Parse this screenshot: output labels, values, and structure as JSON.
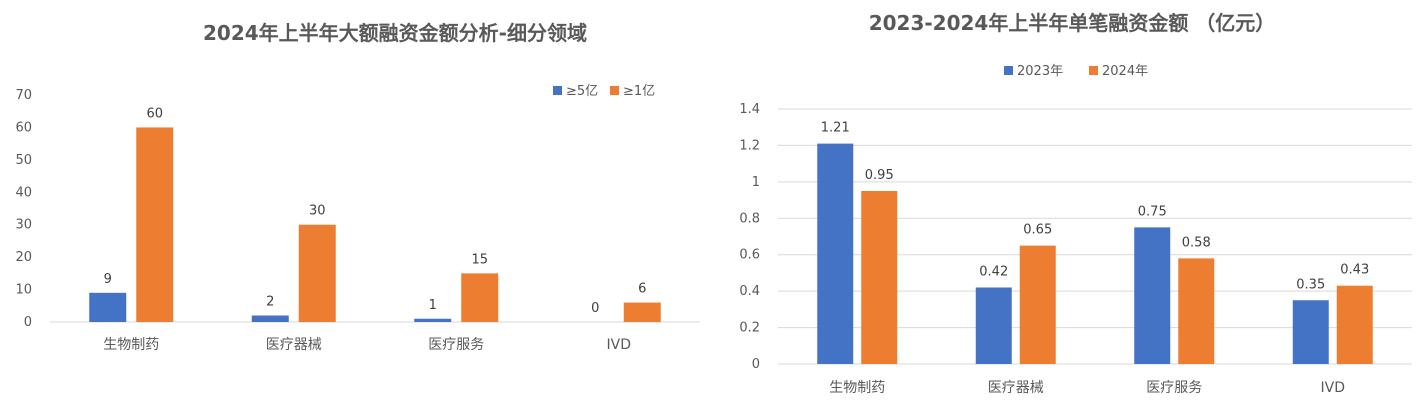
{
  "chart_data": [
    {
      "type": "bar",
      "title": "2024年上半年大额融资金额分析-细分领域",
      "categories": [
        "生物制药",
        "医疗器械",
        "医疗服务",
        "IVD"
      ],
      "series": [
        {
          "name": "≥5亿",
          "values": [
            9,
            2,
            1,
            0
          ],
          "color": "#4472C4"
        },
        {
          "name": "≥1亿",
          "values": [
            60,
            30,
            15,
            6
          ],
          "color": "#ED7D31"
        }
      ],
      "y_ticks": [
        "0",
        "10",
        "20",
        "30",
        "40",
        "50",
        "60",
        "70"
      ],
      "ylim": [
        0,
        70
      ],
      "grid": false,
      "legend": "top-right",
      "data_labels": true
    },
    {
      "type": "bar",
      "title": "2023-2024年上半年单笔融资金额 （亿元）",
      "categories": [
        "生物制药",
        "医疗器械",
        "医疗服务",
        "IVD"
      ],
      "series": [
        {
          "name": "2023年",
          "values": [
            1.21,
            0.42,
            0.75,
            0.35
          ],
          "color": "#4472C4"
        },
        {
          "name": "2024年",
          "values": [
            0.95,
            0.65,
            0.58,
            0.43
          ],
          "color": "#ED7D31"
        }
      ],
      "y_ticks": [
        "0",
        "0.2",
        "0.4",
        "0.6",
        "0.8",
        "1",
        "1.2",
        "1.4"
      ],
      "ylim": [
        0,
        1.4
      ],
      "grid": true,
      "legend": "top",
      "data_labels": true
    }
  ]
}
